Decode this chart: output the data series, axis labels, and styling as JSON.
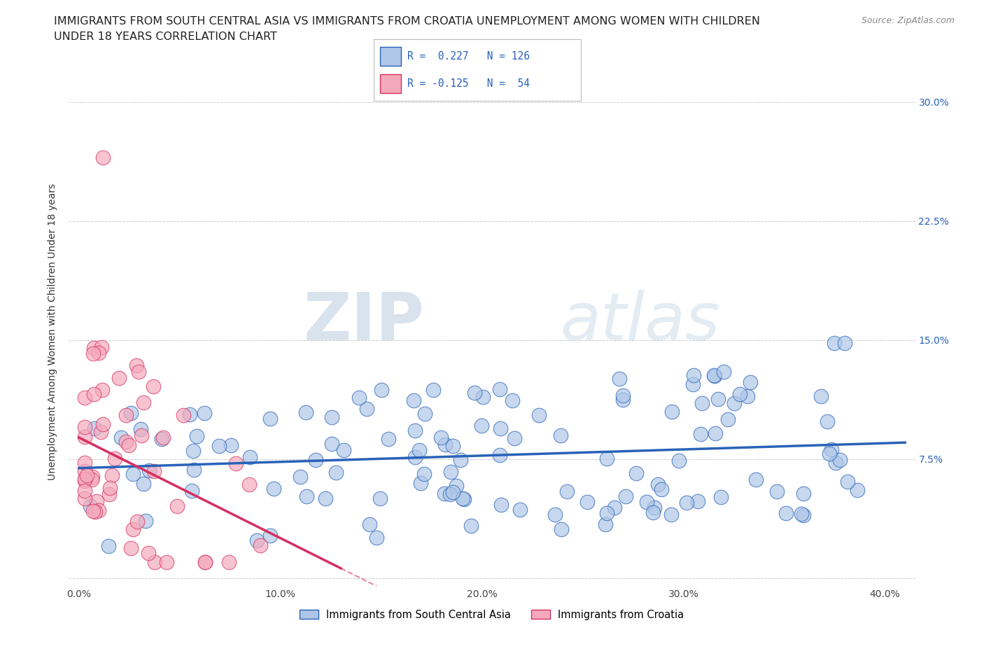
{
  "title_line1": "IMMIGRANTS FROM SOUTH CENTRAL ASIA VS IMMIGRANTS FROM CROATIA UNEMPLOYMENT AMONG WOMEN WITH CHILDREN",
  "title_line2": "UNDER 18 YEARS CORRELATION CHART",
  "source": "Source: ZipAtlas.com",
  "ylabel": "Unemployment Among Women with Children Under 18 years",
  "xlim": [
    -0.005,
    0.415
  ],
  "ylim": [
    -0.005,
    0.315
  ],
  "r_blue": 0.227,
  "n_blue": 126,
  "r_pink": -0.125,
  "n_pink": 54,
  "blue_color": "#aec6e8",
  "pink_color": "#f4aabc",
  "trend_blue_color": "#2962b8",
  "trend_pink_color": "#d63060",
  "background_color": "#ffffff",
  "grid_color": "#cccccc",
  "title_fontsize": 11.5,
  "label_fontsize": 10,
  "tick_fontsize": 10,
  "right_tick_color": "#2962b8",
  "watermark_zip": "ZIP",
  "watermark_atlas": "atlas",
  "legend_blue_label": "Immigrants from South Central Asia",
  "legend_pink_label": "Immigrants from Croatia",
  "xticks": [
    0.0,
    0.1,
    0.2,
    0.3,
    0.4
  ],
  "xtick_labels": [
    "0.0%",
    "10.0%",
    "20.0%",
    "30.0%",
    "40.0%"
  ],
  "yticks": [
    0.0,
    0.075,
    0.15,
    0.225,
    0.3
  ],
  "ytick_labels_right": [
    "",
    "7.5%",
    "15.0%",
    "22.5%",
    "30.0%"
  ]
}
